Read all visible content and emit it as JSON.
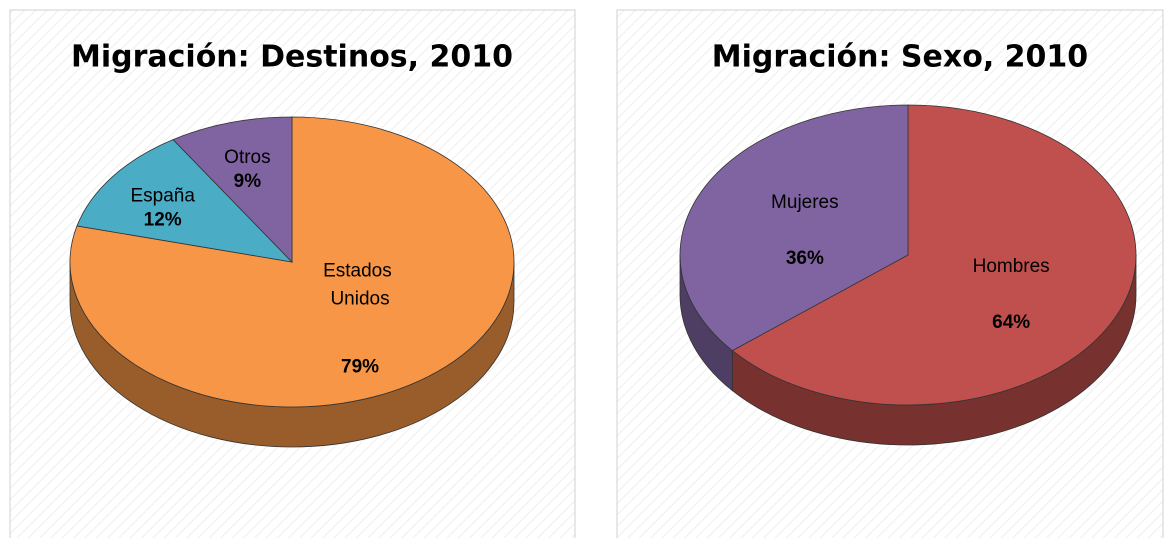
{
  "chart_data": [
    {
      "type": "pie",
      "title": "Migración: Destinos, 2010",
      "categories": [
        "Estados Unidos",
        "España",
        "Otros"
      ],
      "values": [
        79,
        12,
        9
      ],
      "value_labels": [
        "79%",
        "12%",
        "9%"
      ],
      "colors": [
        "#f79646",
        "#4bacc6",
        "#8064a2"
      ]
    },
    {
      "type": "pie",
      "title": "Migración: Sexo, 2010",
      "categories": [
        "Hombres",
        "Mujeres"
      ],
      "values": [
        64,
        36
      ],
      "value_labels": [
        "64%",
        "36%"
      ],
      "colors": [
        "#c0504d",
        "#8064a2"
      ]
    }
  ]
}
